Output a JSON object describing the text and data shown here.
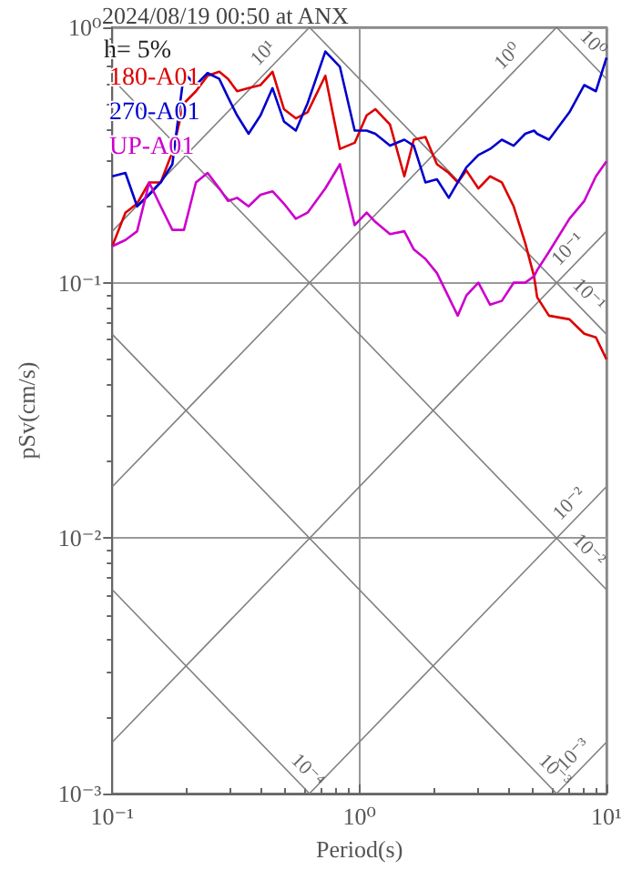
{
  "chart_data": {
    "type": "line",
    "title": "2024/08/19 00:50 at ANX",
    "xlabel": "Period(s)",
    "ylabel": "pSv(cm/s)",
    "log": "xy",
    "grid": true,
    "legend": "top left",
    "marker": "none",
    "xlim": [
      0.1,
      10
    ],
    "ylim": [
      0.001,
      1
    ],
    "xticks": [
      {
        "value": 0.1,
        "label": "10⁻¹"
      },
      {
        "value": 0.2,
        "label": null
      },
      {
        "value": 0.3,
        "label": null
      },
      {
        "value": 0.4,
        "label": null
      },
      {
        "value": 0.5,
        "label": null
      },
      {
        "value": 0.6,
        "label": null
      },
      {
        "value": 0.7,
        "label": null
      },
      {
        "value": 0.8,
        "label": null
      },
      {
        "value": 0.9,
        "label": null
      },
      {
        "value": 1,
        "label": "10⁰"
      },
      {
        "value": 2,
        "label": null
      },
      {
        "value": 3,
        "label": null
      },
      {
        "value": 4,
        "label": null
      },
      {
        "value": 5,
        "label": null
      },
      {
        "value": 6,
        "label": null
      },
      {
        "value": 7,
        "label": null
      },
      {
        "value": 8,
        "label": null
      },
      {
        "value": 9,
        "label": null
      },
      {
        "value": 10,
        "label": "10¹"
      }
    ],
    "yticks": [
      {
        "value": 0.001,
        "label": "10⁻³"
      },
      {
        "value": 0.002,
        "label": null
      },
      {
        "value": 0.003,
        "label": null
      },
      {
        "value": 0.004,
        "label": null
      },
      {
        "value": 0.005,
        "label": null
      },
      {
        "value": 0.006,
        "label": null
      },
      {
        "value": 0.007,
        "label": null
      },
      {
        "value": 0.008,
        "label": null
      },
      {
        "value": 0.009,
        "label": null
      },
      {
        "value": 0.01,
        "label": "10⁻²"
      },
      {
        "value": 0.02,
        "label": null
      },
      {
        "value": 0.03,
        "label": null
      },
      {
        "value": 0.04,
        "label": null
      },
      {
        "value": 0.05,
        "label": null
      },
      {
        "value": 0.06,
        "label": null
      },
      {
        "value": 0.07,
        "label": null
      },
      {
        "value": 0.08,
        "label": null
      },
      {
        "value": 0.09,
        "label": null
      },
      {
        "value": 0.1,
        "label": "10⁻¹"
      },
      {
        "value": 0.2,
        "label": null
      },
      {
        "value": 0.3,
        "label": null
      },
      {
        "value": 0.4,
        "label": null
      },
      {
        "value": 0.5,
        "label": null
      },
      {
        "value": 0.6,
        "label": null
      },
      {
        "value": 0.7,
        "label": null
      },
      {
        "value": 0.8,
        "label": null
      },
      {
        "value": 0.9,
        "label": null
      },
      {
        "value": 1,
        "label": "10⁰"
      }
    ],
    "x": [
      0.1,
      0.113,
      0.126,
      0.141,
      0.157,
      0.175,
      0.195,
      0.218,
      0.243,
      0.271,
      0.294,
      0.32,
      0.356,
      0.398,
      0.445,
      0.495,
      0.553,
      0.617,
      0.728,
      0.834,
      0.957,
      1.07,
      1.16,
      1.33,
      1.52,
      1.66,
      1.85,
      2.06,
      2.3,
      2.5,
      2.71,
      3.03,
      3.38,
      3.77,
      4.21,
      4.69,
      5.09,
      5.24,
      5.85,
      7.08,
      8.13,
      9.06,
      10
    ],
    "series": [
      {
        "name": "180-A01",
        "color": "#dd0000",
        "values": [
          0.139,
          0.188,
          0.204,
          0.247,
          0.247,
          0.325,
          0.504,
          0.562,
          0.646,
          0.67,
          0.628,
          0.562,
          0.578,
          0.594,
          0.67,
          0.478,
          0.44,
          0.465,
          0.646,
          0.334,
          0.353,
          0.452,
          0.478,
          0.416,
          0.261,
          0.363,
          0.372,
          0.291,
          0.269,
          0.247,
          0.275,
          0.234,
          0.261,
          0.247,
          0.199,
          0.143,
          0.106,
          0.0877,
          0.0743,
          0.0719,
          0.0631,
          0.0611,
          0.0501
        ]
      },
      {
        "name": "270-A01",
        "color": "#0000cc",
        "values": [
          0.261,
          0.269,
          0.199,
          0.221,
          0.247,
          0.291,
          0.662,
          0.594,
          0.662,
          0.628,
          0.532,
          0.452,
          0.383,
          0.452,
          0.578,
          0.428,
          0.394,
          0.504,
          0.804,
          0.7,
          0.394,
          0.394,
          0.383,
          0.344,
          0.363,
          0.344,
          0.247,
          0.254,
          0.215,
          0.247,
          0.283,
          0.316,
          0.334,
          0.363,
          0.344,
          0.383,
          0.394,
          0.383,
          0.363,
          0.465,
          0.594,
          0.562,
          0.76
        ]
      },
      {
        "name": "UP-A01",
        "color": "#cc00cc",
        "values": [
          0.139,
          0.147,
          0.159,
          0.247,
          0.199,
          0.161,
          0.161,
          0.247,
          0.269,
          0.234,
          0.209,
          0.215,
          0.199,
          0.221,
          0.228,
          0.204,
          0.178,
          0.188,
          0.234,
          0.291,
          0.168,
          0.188,
          0.173,
          0.155,
          0.159,
          0.135,
          0.124,
          0.109,
          0.0877,
          0.0743,
          0.0891,
          0.1,
          0.082,
          0.0849,
          0.1,
          0.1,
          0.106,
          0.112,
          0.132,
          0.178,
          0.209,
          0.261,
          0.299
        ]
      },
      {
        "type": "line",
        "color": "#808080",
        "x": [
          6.28,
          10
        ],
        "values": [
          0.001,
          0.00159
        ]
      },
      {
        "type": "line",
        "color": "#808080",
        "x": [
          0.628,
          10
        ],
        "values": [
          0.001,
          0.0159
        ]
      },
      {
        "type": "line",
        "color": "#808080",
        "x": [
          0.1,
          10
        ],
        "values": [
          0.00159,
          0.159
        ]
      },
      {
        "type": "line",
        "color": "#808080",
        "x": [
          0.1,
          6.28
        ],
        "values": [
          0.0159,
          1
        ]
      },
      {
        "type": "line",
        "color": "#808080",
        "x": [
          0.1,
          0.628
        ],
        "values": [
          0.159,
          1
        ]
      },
      {
        "type": "line",
        "color": "#808080",
        "x": [
          0.1,
          0.628
        ],
        "values": [
          0.00628,
          0.001
        ]
      },
      {
        "type": "line",
        "color": "#808080",
        "x": [
          0.1,
          6.28
        ],
        "values": [
          0.0628,
          0.001
        ]
      },
      {
        "type": "line",
        "color": "#808080",
        "x": [
          0.1,
          10
        ],
        "values": [
          0.628,
          0.00628
        ]
      },
      {
        "type": "line",
        "color": "#808080",
        "x": [
          0.628,
          10
        ],
        "values": [
          1,
          0.0628
        ]
      },
      {
        "type": "line",
        "color": "#808080",
        "x": [
          6.28,
          10
        ],
        "values": [
          1,
          0.628
        ]
      }
    ],
    "annotations": [
      "h= 5%",
      {
        "text": "10¹",
        "x": 0.45,
        "y": 0.72
      },
      {
        "text": "10⁰",
        "x": 4.4,
        "y": 0.7
      },
      {
        "text": "10⁻¹",
        "x": 7.7,
        "y": 0.123
      },
      {
        "text": "10⁻²",
        "x": 7.8,
        "y": 0.0124
      },
      {
        "text": "10⁻³",
        "x": 8.1,
        "y": 0.00129
      },
      {
        "text": "10⁰",
        "x": 8.0,
        "y": 0.785
      },
      {
        "text": "10⁻¹",
        "x": 7.7,
        "y": 0.0816
      },
      {
        "text": "10⁻²",
        "x": 7.7,
        "y": 0.00816
      },
      {
        "text": "10⁻³",
        "x": 5.6,
        "y": 0.00112
      },
      {
        "text": "10⁻⁴",
        "x": 0.56,
        "y": 0.00112
      }
    ]
  }
}
